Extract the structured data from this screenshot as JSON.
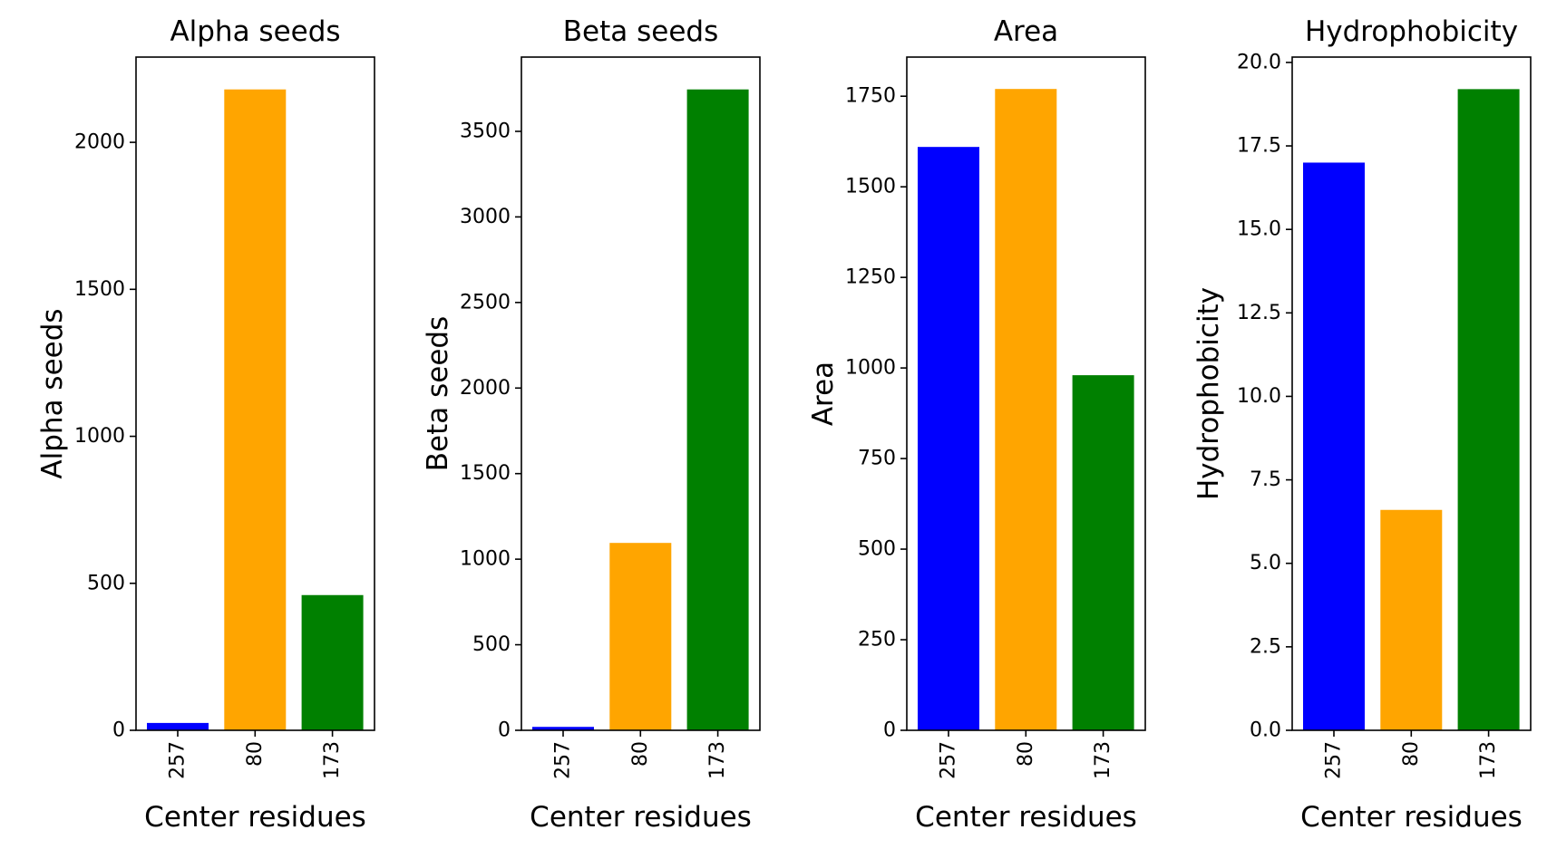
{
  "chart_data": [
    {
      "type": "bar",
      "title": "Alpha seeds",
      "xlabel": "Center residues",
      "ylabel": "Alpha seeds",
      "categories": [
        "257",
        "80",
        "173"
      ],
      "values": [
        25,
        2180,
        460
      ],
      "colors": [
        "#0000ff",
        "#ffa500",
        "#008000"
      ],
      "ylim": [
        0,
        2290
      ],
      "yticks": [
        0,
        500,
        1000,
        1500,
        2000
      ],
      "ytick_labels": [
        "0",
        "500",
        "1000",
        "1500",
        "2000"
      ],
      "grid": false
    },
    {
      "type": "bar",
      "title": "Beta seeds",
      "xlabel": "Center residues",
      "ylabel": "Beta seeds",
      "categories": [
        "257",
        "80",
        "173"
      ],
      "values": [
        20,
        1095,
        3745
      ],
      "colors": [
        "#0000ff",
        "#ffa500",
        "#008000"
      ],
      "ylim": [
        0,
        3934
      ],
      "yticks": [
        0,
        500,
        1000,
        1500,
        2000,
        2500,
        3000,
        3500
      ],
      "ytick_labels": [
        "0",
        "500",
        "1000",
        "1500",
        "2000",
        "2500",
        "3000",
        "3500"
      ],
      "grid": false
    },
    {
      "type": "bar",
      "title": "Area",
      "xlabel": "Center residues",
      "ylabel": "Area",
      "categories": [
        "257",
        "80",
        "173"
      ],
      "values": [
        1610,
        1770,
        980
      ],
      "colors": [
        "#0000ff",
        "#ffa500",
        "#008000"
      ],
      "ylim": [
        0,
        1858
      ],
      "yticks": [
        0,
        250,
        500,
        750,
        1000,
        1250,
        1500,
        1750
      ],
      "ytick_labels": [
        "0",
        "250",
        "500",
        "750",
        "1000",
        "1250",
        "1500",
        "1750"
      ],
      "grid": false
    },
    {
      "type": "bar",
      "title": "Hydrophobicity",
      "xlabel": "Center residues",
      "ylabel": "Hydrophobicity",
      "categories": [
        "257",
        "80",
        "173"
      ],
      "values": [
        17.0,
        6.6,
        19.2
      ],
      "colors": [
        "#0000ff",
        "#ffa500",
        "#008000"
      ],
      "ylim": [
        0,
        20.16
      ],
      "yticks": [
        0,
        2.5,
        5,
        7.5,
        10,
        12.5,
        15,
        17.5,
        20
      ],
      "ytick_labels": [
        "0.0",
        "2.5",
        "5.0",
        "7.5",
        "10.0",
        "12.5",
        "15.0",
        "17.5",
        "20.0"
      ],
      "grid": false
    }
  ]
}
